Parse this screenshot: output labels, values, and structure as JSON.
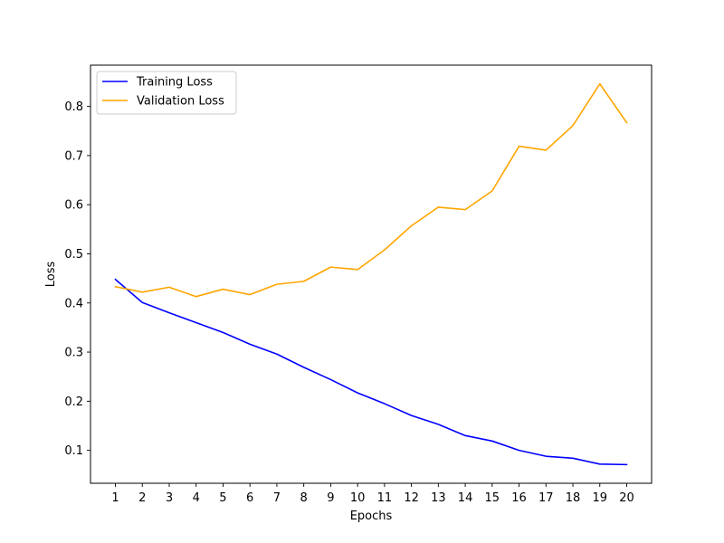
{
  "chart_data": {
    "type": "line",
    "title": "",
    "xlabel": "Epochs",
    "ylabel": "Loss",
    "x": [
      1,
      2,
      3,
      4,
      5,
      6,
      7,
      8,
      9,
      10,
      11,
      12,
      13,
      14,
      15,
      16,
      17,
      18,
      19,
      20
    ],
    "x_ticks": [
      "1",
      "2",
      "3",
      "4",
      "5",
      "6",
      "7",
      "8",
      "9",
      "10",
      "11",
      "12",
      "13",
      "14",
      "15",
      "16",
      "17",
      "18",
      "19",
      "20"
    ],
    "xlim": [
      0.075,
      20.925
    ],
    "ylim": [
      0.033,
      0.884
    ],
    "y_ticks": [
      0.1,
      0.2,
      0.3,
      0.4,
      0.5,
      0.6,
      0.7,
      0.8
    ],
    "y_tick_labels": [
      "0.1",
      "0.2",
      "0.3",
      "0.4",
      "0.5",
      "0.6",
      "0.7",
      "0.8"
    ],
    "grid": false,
    "legend_position": "upper-left",
    "series": [
      {
        "name": "Training Loss",
        "color": "#0000ff",
        "values": [
          0.448,
          0.401,
          0.38,
          0.36,
          0.34,
          0.316,
          0.296,
          0.269,
          0.244,
          0.217,
          0.195,
          0.171,
          0.153,
          0.13,
          0.119,
          0.1,
          0.088,
          0.084,
          0.072,
          0.071
        ]
      },
      {
        "name": "Validation Loss",
        "color": "#ffa500",
        "values": [
          0.433,
          0.422,
          0.432,
          0.413,
          0.428,
          0.417,
          0.438,
          0.444,
          0.473,
          0.468,
          0.508,
          0.557,
          0.595,
          0.59,
          0.628,
          0.719,
          0.711,
          0.761,
          0.846,
          0.767
        ]
      }
    ]
  }
}
